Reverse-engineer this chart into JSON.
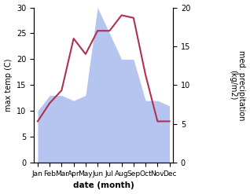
{
  "months": [
    "Jan",
    "Feb",
    "Mar",
    "Apr",
    "May",
    "Jun",
    "Jul",
    "Aug",
    "Sep",
    "Oct",
    "Nov",
    "Dec"
  ],
  "x": [
    0,
    1,
    2,
    3,
    4,
    5,
    6,
    7,
    8,
    9,
    10,
    11
  ],
  "max_temp": [
    8.0,
    11.5,
    14.0,
    24.0,
    21.0,
    25.5,
    25.5,
    28.5,
    28.0,
    17.0,
    8.0,
    8.0
  ],
  "precipitation_left": [
    10,
    13,
    13,
    12,
    13,
    30,
    25,
    20,
    20,
    12,
    12,
    11
  ],
  "temp_color": "#b03050",
  "precip_color": "#aabbee",
  "ylabel_left": "max temp (C)",
  "ylabel_right": "med. precipitation\n(kg/m2)",
  "xlabel": "date (month)",
  "left_ylim": [
    0,
    30
  ],
  "left_yticks": [
    0,
    5,
    10,
    15,
    20,
    25,
    30
  ],
  "right_yticks_positions": [
    0,
    7.5,
    15,
    22.5,
    30
  ],
  "right_ytick_labels": [
    "0",
    "5",
    "10",
    "15",
    "20"
  ],
  "fig_width": 3.18,
  "fig_height": 2.47,
  "dpi": 100
}
